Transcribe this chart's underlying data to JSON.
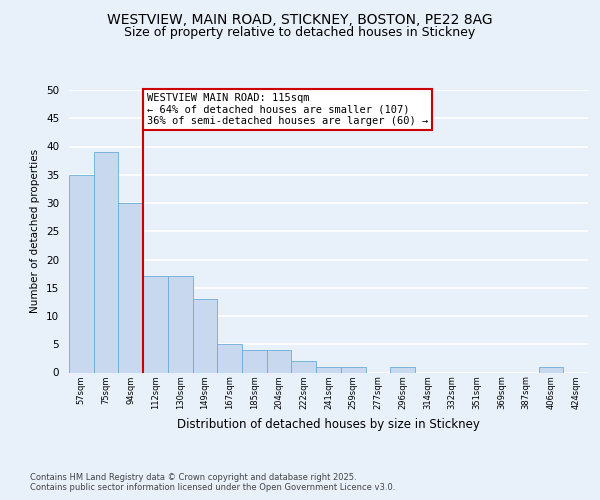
{
  "title1": "WESTVIEW, MAIN ROAD, STICKNEY, BOSTON, PE22 8AG",
  "title2": "Size of property relative to detached houses in Stickney",
  "xlabel": "Distribution of detached houses by size in Stickney",
  "ylabel": "Number of detached properties",
  "bar_labels": [
    "57sqm",
    "75sqm",
    "94sqm",
    "112sqm",
    "130sqm",
    "149sqm",
    "167sqm",
    "185sqm",
    "204sqm",
    "222sqm",
    "241sqm",
    "259sqm",
    "277sqm",
    "296sqm",
    "314sqm",
    "332sqm",
    "351sqm",
    "369sqm",
    "387sqm",
    "406sqm",
    "424sqm"
  ],
  "bar_values": [
    35,
    39,
    30,
    17,
    17,
    13,
    5,
    4,
    4,
    2,
    1,
    1,
    0,
    1,
    0,
    0,
    0,
    0,
    0,
    1,
    0
  ],
  "bar_color": "#c8d9ef",
  "bar_edge_color": "#6aaed6",
  "vline_x_idx": 3,
  "vline_color": "#cc0000",
  "annotation_text": "WESTVIEW MAIN ROAD: 115sqm\n← 64% of detached houses are smaller (107)\n36% of semi-detached houses are larger (60) →",
  "annotation_box_color": "#ffffff",
  "annotation_box_edge": "#cc0000",
  "ylim": [
    0,
    50
  ],
  "yticks": [
    0,
    5,
    10,
    15,
    20,
    25,
    30,
    35,
    40,
    45,
    50
  ],
  "footer": "Contains HM Land Registry data © Crown copyright and database right 2025.\nContains public sector information licensed under the Open Government Licence v3.0.",
  "bg_color": "#e8f0fa",
  "plot_bg_color": "#e8f0fa",
  "grid_color": "#ffffff",
  "title_fontsize": 10,
  "subtitle_fontsize": 9,
  "annotation_fontsize": 7.5
}
